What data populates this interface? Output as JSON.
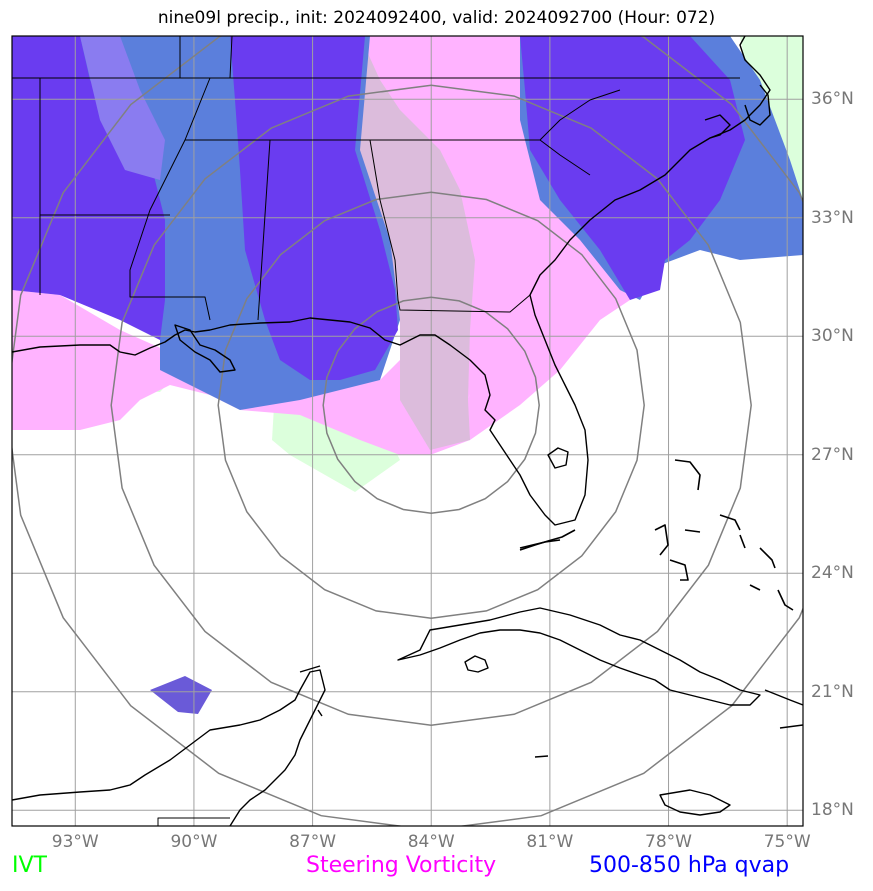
{
  "title": "nine09l precip., init: 2024092400, valid: 2024092700 (Hour: 072)",
  "lon_ticks": [
    {
      "label": "93°W",
      "lon": -93
    },
    {
      "label": "90°W",
      "lon": -90
    },
    {
      "label": "87°W",
      "lon": -87
    },
    {
      "label": "84°W",
      "lon": -84
    },
    {
      "label": "81°W",
      "lon": -81
    },
    {
      "label": "78°W",
      "lon": -78
    },
    {
      "label": "75°W",
      "lon": -75
    }
  ],
  "lat_ticks": [
    {
      "label": "36°N",
      "lat": 36
    },
    {
      "label": "33°N",
      "lat": 33
    },
    {
      "label": "30°N",
      "lat": 30
    },
    {
      "label": "27°N",
      "lat": 27
    },
    {
      "label": "24°N",
      "lat": 24
    },
    {
      "label": "21°N",
      "lat": 21
    },
    {
      "label": "18°N",
      "lat": 18
    }
  ],
  "map_extent": {
    "lon_min": -94.6,
    "lon_max": -74.6,
    "lat_min": 17.6,
    "lat_max": 37.6
  },
  "range_rings_center": {
    "lon": -84.0,
    "lat": 28.0
  },
  "legend": [
    {
      "label": "IVT",
      "color": "#00ff00"
    },
    {
      "label": "Steering Vorticity",
      "color": "#ff00ff"
    },
    {
      "label": "500-850 hPa qvap",
      "color": "#0000ff"
    }
  ],
  "colors": {
    "grid": "#a0a0a0",
    "rings": "#808080",
    "coast": "#000000",
    "blue_fill": "#5b7fdc",
    "purple_fill": "#6a3cf0",
    "pink_fill": "#ffb3ff",
    "mauve_fill": "#dcbcdc",
    "green_fill": "#dcffdc"
  }
}
